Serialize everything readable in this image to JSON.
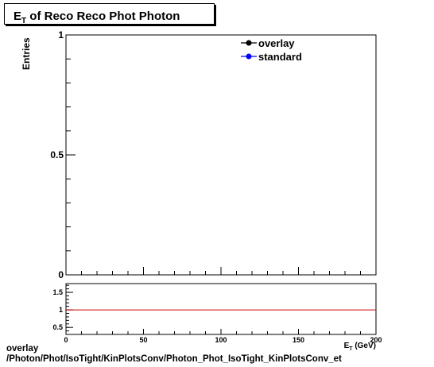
{
  "title": {
    "main": "E",
    "sub": "T",
    "rest": " of Reco Reco Phot Photon"
  },
  "footer": {
    "line1": "overlay",
    "line2": "/Photon/Phot/IsoTight/KinPlotsConv/Photon_Phot_IsoTight_KinPlotsConv_et"
  },
  "chart_data": [
    {
      "type": "line",
      "ylabel": "Entries",
      "xlim": [
        0,
        200
      ],
      "ylim": [
        0,
        1
      ],
      "yticks": [
        {
          "value": 0,
          "label": "0"
        },
        {
          "value": 0.5,
          "label": "0.5"
        },
        {
          "value": 1,
          "label": "1"
        }
      ],
      "legend": {
        "placement": "top-right",
        "entries": [
          {
            "label": "overlay",
            "color": "#000000"
          },
          {
            "label": "standard",
            "color": "#0000ff"
          }
        ]
      },
      "series": [
        {
          "name": "overlay",
          "color": "#000000",
          "x": [],
          "y": []
        },
        {
          "name": "standard",
          "color": "#0000ff",
          "x": [],
          "y": []
        }
      ]
    },
    {
      "type": "line",
      "xlabel": "E_{T} (GeV)",
      "xlim": [
        0,
        200
      ],
      "ylim": [
        0.3,
        1.75
      ],
      "xticks": [
        {
          "value": 0,
          "label": "0"
        },
        {
          "value": 50,
          "label": "50"
        },
        {
          "value": 100,
          "label": "100"
        },
        {
          "value": 150,
          "label": "150"
        },
        {
          "value": 200,
          "label": "200"
        }
      ],
      "yticks": [
        {
          "value": 0.5,
          "label": "0.5"
        },
        {
          "value": 1,
          "label": "1"
        },
        {
          "value": 1.5,
          "label": "1.5"
        }
      ],
      "reference_line": {
        "y": 1,
        "color": "#cc0000"
      }
    }
  ]
}
